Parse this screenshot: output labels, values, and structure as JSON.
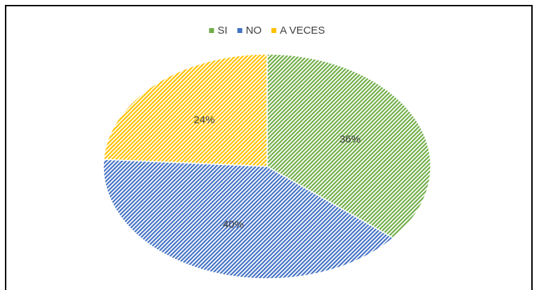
{
  "chart_data": {
    "type": "pie",
    "categories": [
      "SI",
      "NO",
      "A VECES"
    ],
    "values": [
      36,
      40,
      24
    ],
    "value_labels": [
      "36%",
      "40%",
      "24%"
    ],
    "colors": [
      "#70ad47",
      "#4472c4",
      "#ffc000"
    ],
    "legend": "top"
  }
}
